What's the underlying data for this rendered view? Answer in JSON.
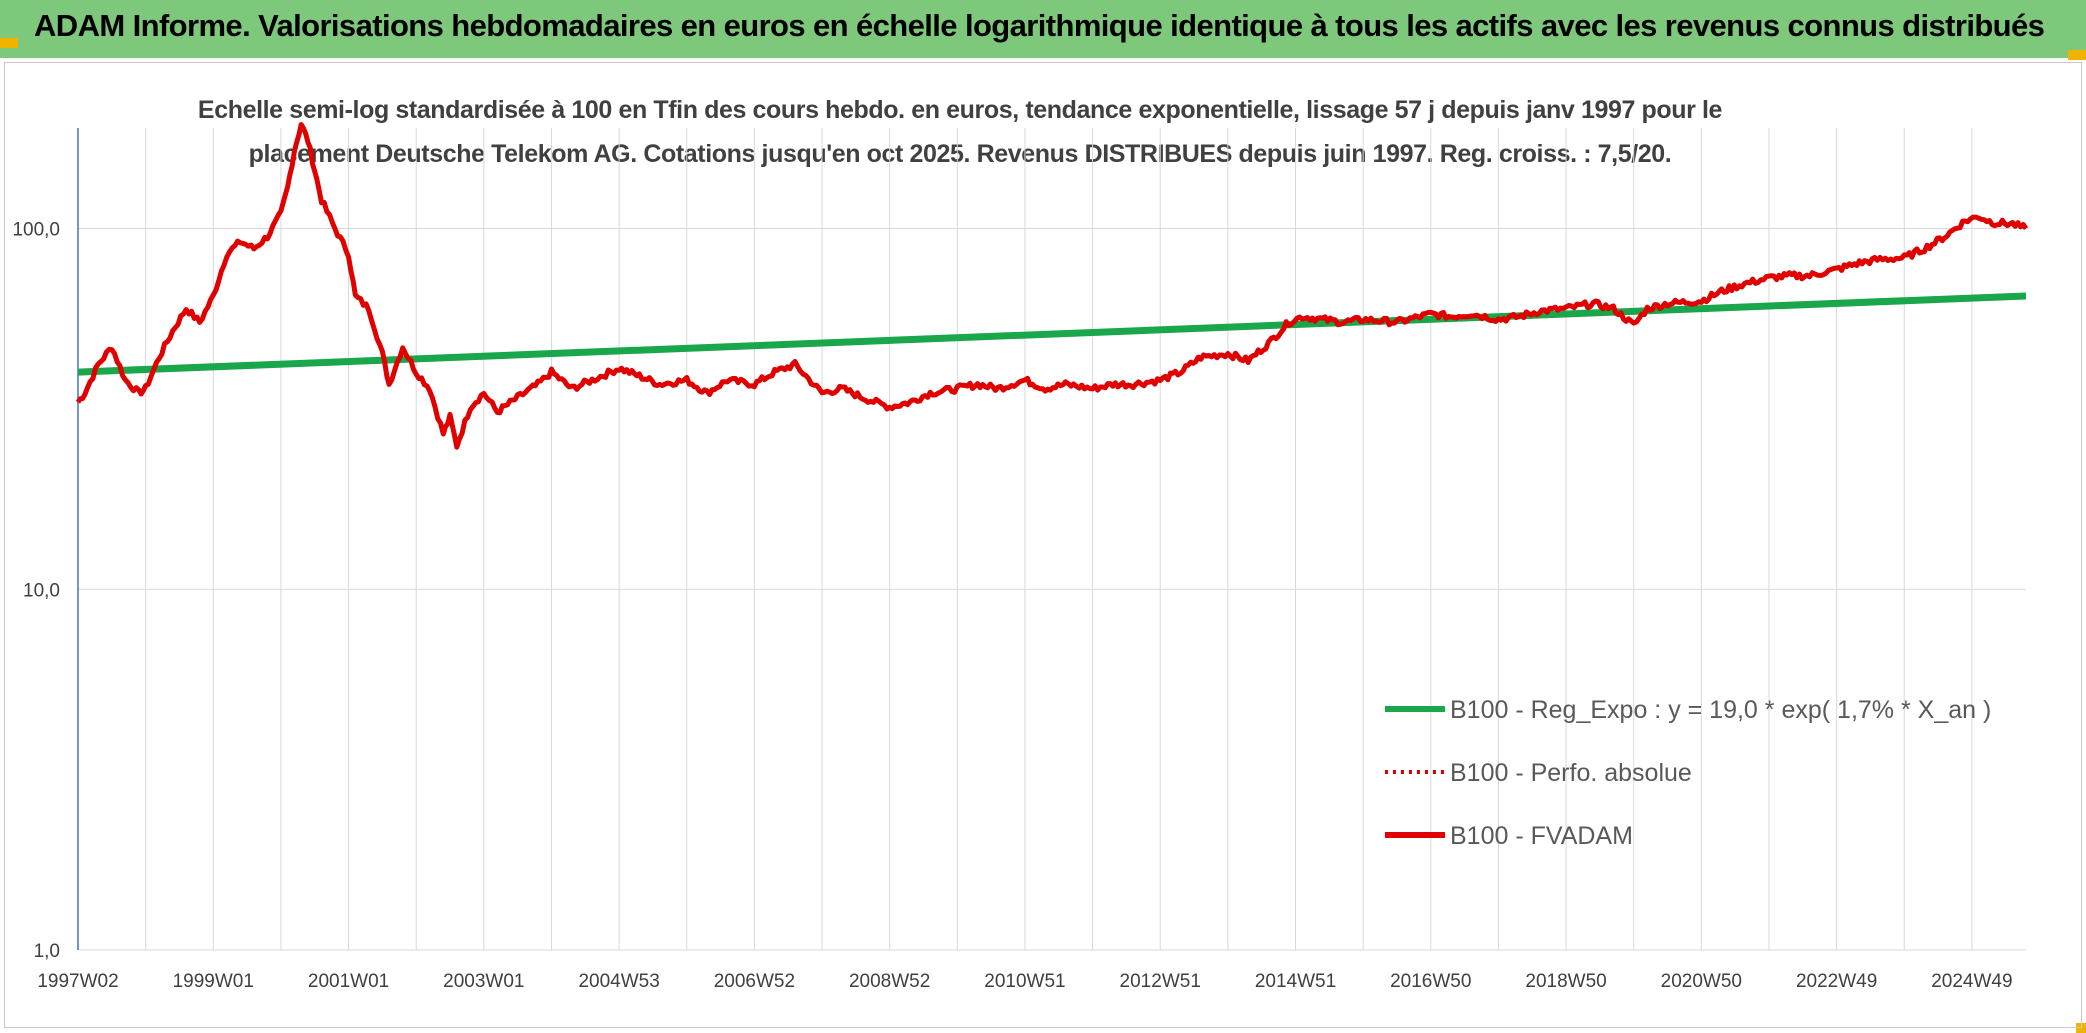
{
  "header": {
    "title": "ADAM Informe. Valorisations hebdomadaires en euros en échelle logarithmique identique à tous les actifs avec les revenus connus distribués"
  },
  "colors": {
    "header_bg": "#7dc87a",
    "accent_corner": "#f0b400",
    "series_fvadam": "#e00000",
    "series_perfo": "#e00000",
    "series_regexpo": "#1aa64a",
    "grid": "#d9d9d9",
    "axis": "#4472c4"
  },
  "chart_data": {
    "type": "line",
    "title_line1": "Echelle semi-log standardisée à 100 en Tfin des cours hebdo. en euros, tendance exponentielle, lissage 57 j depuis janv 1997 pour le",
    "title_line2": "placement Deutsche Telekom AG. Cotations jusqu'en oct 2025. Revenus DISTRIBUES depuis juin 1997. Reg. croiss. : 7,5/20.",
    "y_scale": "log",
    "ylim": [
      1,
      190
    ],
    "xlim": [
      1997.0,
      2025.8
    ],
    "y_ticks": [
      {
        "value": 1,
        "label": "1,0"
      },
      {
        "value": 10,
        "label": "10,0"
      },
      {
        "value": 100,
        "label": "100,0"
      }
    ],
    "x_ticks": [
      {
        "value": 1997.0,
        "label": "1997W02"
      },
      {
        "value": 1999.0,
        "label": "1999W01"
      },
      {
        "value": 2001.0,
        "label": "2001W01"
      },
      {
        "value": 2003.0,
        "label": "2003W01"
      },
      {
        "value": 2005.0,
        "label": "2004W53"
      },
      {
        "value": 2007.0,
        "label": "2006W52"
      },
      {
        "value": 2009.0,
        "label": "2008W52"
      },
      {
        "value": 2011.0,
        "label": "2010W51"
      },
      {
        "value": 2013.0,
        "label": "2012W51"
      },
      {
        "value": 2015.0,
        "label": "2014W51"
      },
      {
        "value": 2017.0,
        "label": "2016W50"
      },
      {
        "value": 2019.0,
        "label": "2018W50"
      },
      {
        "value": 2021.0,
        "label": "2020W50"
      },
      {
        "value": 2023.0,
        "label": "2022W49"
      },
      {
        "value": 2025.0,
        "label": "2024W49"
      }
    ],
    "minor_x_ticks": [
      1998,
      2000,
      2002,
      2004,
      2006,
      2008,
      2010,
      2012,
      2014,
      2016,
      2018,
      2020,
      2022,
      2024
    ],
    "legend": [
      {
        "name": "B100 - Reg_Expo : y = 19,0 * exp( 1,7% *  X_an )",
        "style": "solid",
        "key": "regexpo"
      },
      {
        "name": "B100 - Perfo. absolue",
        "style": "dotted",
        "key": "perfo"
      },
      {
        "name": "B100 - FVADAM",
        "style": "solid",
        "key": "fvadam"
      }
    ],
    "series": [
      {
        "name": "B100 - Reg_Expo",
        "key": "regexpo",
        "x": [
          1997.0,
          2025.8
        ],
        "y": [
          40.0,
          65.0
        ]
      },
      {
        "name": "B100 - FVADAM",
        "key": "fvadam",
        "x": [
          1997.0,
          1997.1,
          1997.3,
          1997.5,
          1997.7,
          1997.9,
          1998.0,
          1998.2,
          1998.4,
          1998.6,
          1998.8,
          1999.0,
          1999.2,
          1999.4,
          1999.6,
          1999.8,
          2000.0,
          2000.1,
          2000.2,
          2000.3,
          2000.4,
          2000.5,
          2000.6,
          2000.8,
          2001.0,
          2001.1,
          2001.3,
          2001.5,
          2001.6,
          2001.8,
          2002.0,
          2002.2,
          2002.4,
          2002.5,
          2002.6,
          2002.8,
          2003.0,
          2003.2,
          2003.5,
          2003.8,
          2004.0,
          2004.3,
          2004.6,
          2005.0,
          2005.3,
          2005.6,
          2006.0,
          2006.3,
          2006.6,
          2007.0,
          2007.3,
          2007.6,
          2008.0,
          2008.3,
          2008.6,
          2009.0,
          2009.3,
          2009.6,
          2010.0,
          2010.3,
          2010.6,
          2011.0,
          2011.3,
          2011.6,
          2012.0,
          2012.3,
          2012.6,
          2013.0,
          2013.3,
          2013.6,
          2014.0,
          2014.3,
          2014.6,
          2014.9,
          2015.1,
          2015.4,
          2015.7,
          2016.0,
          2016.5,
          2017.0,
          2017.3,
          2017.6,
          2018.0,
          2018.3,
          2018.6,
          2019.0,
          2019.4,
          2019.7,
          2020.0,
          2020.2,
          2020.5,
          2021.0,
          2021.3,
          2021.6,
          2022.0,
          2022.3,
          2022.6,
          2023.0,
          2023.3,
          2023.6,
          2024.0,
          2024.3,
          2024.6,
          2024.9,
          2025.1,
          2025.3,
          2025.6,
          2025.8
        ],
        "y": [
          33.0,
          35.0,
          42.0,
          47.0,
          38.0,
          35.0,
          36.0,
          44.0,
          52.0,
          60.0,
          55.0,
          65.0,
          85.0,
          92.0,
          88.0,
          95.0,
          110.0,
          130.0,
          165.0,
          195.0,
          175.0,
          145.0,
          120.0,
          100.0,
          85.0,
          65.0,
          60.0,
          45.0,
          37.0,
          47.0,
          40.0,
          36.0,
          27.0,
          30.0,
          25.0,
          32.0,
          35.0,
          31.0,
          34.0,
          37.0,
          40.0,
          36.0,
          38.0,
          41.0,
          39.0,
          37.0,
          38.0,
          35.0,
          38.0,
          37.0,
          40.0,
          42.0,
          35.0,
          36.0,
          34.0,
          32.0,
          33.0,
          35.0,
          36.0,
          37.0,
          36.0,
          38.0,
          36.0,
          37.0,
          36.0,
          37.0,
          37.0,
          38.0,
          40.0,
          44.0,
          45.0,
          43.0,
          48.0,
          55.0,
          57.0,
          56.0,
          55.0,
          56.0,
          55.0,
          58.0,
          57.0,
          58.0,
          56.0,
          57.0,
          59.0,
          60.0,
          62.0,
          60.0,
          54.0,
          60.0,
          62.0,
          63.0,
          67.0,
          70.0,
          73.0,
          74.0,
          74.0,
          77.0,
          80.0,
          82.0,
          83.0,
          88.0,
          95.0,
          105.0,
          108.0,
          104.0,
          103.0,
          100.0
        ]
      }
    ]
  }
}
